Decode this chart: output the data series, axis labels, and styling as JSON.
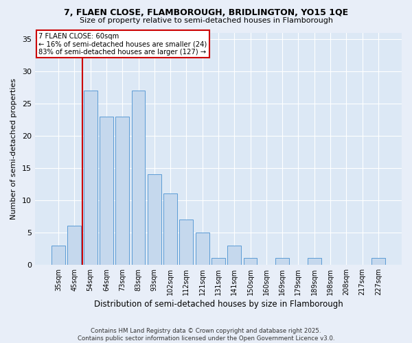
{
  "title1": "7, FLAEN CLOSE, FLAMBOROUGH, BRIDLINGTON, YO15 1QE",
  "title2": "Size of property relative to semi-detached houses in Flamborough",
  "xlabel": "Distribution of semi-detached houses by size in Flamborough",
  "ylabel": "Number of semi-detached properties",
  "categories": [
    "35sqm",
    "45sqm",
    "54sqm",
    "64sqm",
    "73sqm",
    "83sqm",
    "93sqm",
    "102sqm",
    "112sqm",
    "121sqm",
    "131sqm",
    "141sqm",
    "150sqm",
    "160sqm",
    "169sqm",
    "179sqm",
    "189sqm",
    "198sqm",
    "208sqm",
    "217sqm",
    "227sqm"
  ],
  "values": [
    3,
    6,
    27,
    23,
    23,
    27,
    14,
    11,
    7,
    5,
    1,
    3,
    1,
    0,
    1,
    0,
    1,
    0,
    0,
    0,
    1
  ],
  "bar_color": "#c5d8ed",
  "bar_edge_color": "#5b9bd5",
  "vline_color": "#cc0000",
  "ylim": [
    0,
    36
  ],
  "yticks": [
    0,
    5,
    10,
    15,
    20,
    25,
    30,
    35
  ],
  "annotation_title": "7 FLAEN CLOSE: 60sqm",
  "annotation_line1": "← 16% of semi-detached houses are smaller (24)",
  "annotation_line2": "83% of semi-detached houses are larger (127) →",
  "annotation_box_color": "#ffffff",
  "annotation_box_edge": "#cc0000",
  "bg_color": "#dce8f5",
  "grid_color": "#ffffff",
  "fig_color": "#e8eef8",
  "footer": "Contains HM Land Registry data © Crown copyright and database right 2025.\nContains public sector information licensed under the Open Government Licence v3.0."
}
